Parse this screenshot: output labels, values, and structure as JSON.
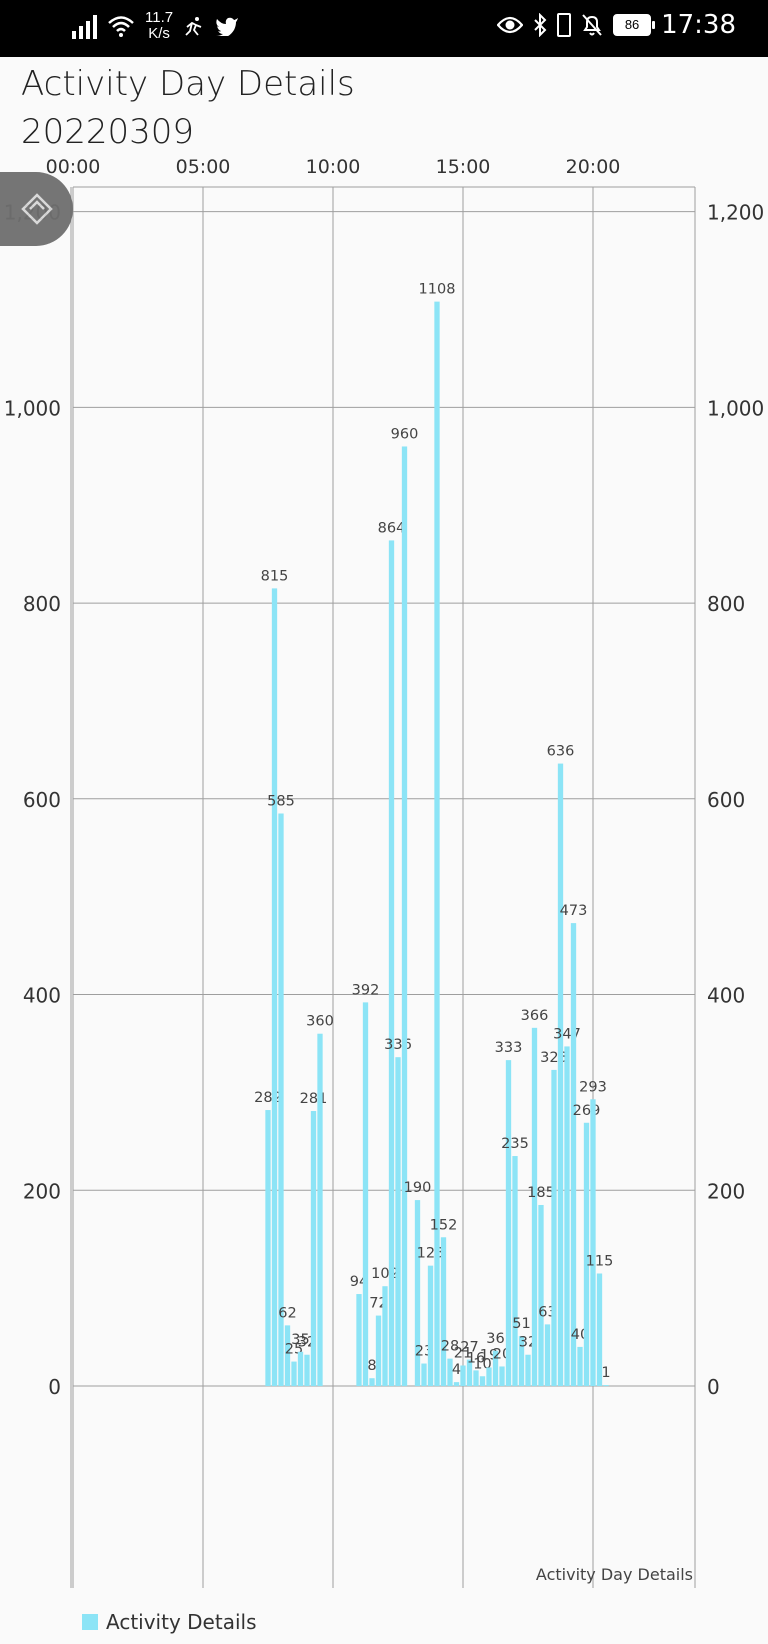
{
  "status_bar": {
    "net_speed_value": "11.7",
    "net_speed_unit": "K/s",
    "battery": "86",
    "time": "17:38",
    "icons": [
      "signal-icon",
      "wifi-icon",
      "activity-icon",
      "twitter-icon",
      "eye-icon",
      "bluetooth-icon",
      "battery-icon",
      "bell-off-icon"
    ]
  },
  "header": {
    "title_line1": "Activity Day Details",
    "title_line2": "20220309"
  },
  "fab": {
    "icon": "diamond-icon"
  },
  "colors": {
    "bar": "#8ce4f6",
    "grid": "#9e9e9e",
    "axis_text": "#333333"
  },
  "chart_data": {
    "type": "bar",
    "description_label": "Activity Day Details",
    "x_axis_labels": [
      "00:00",
      "05:00",
      "10:00",
      "15:00",
      "20:00"
    ],
    "x_label_hours": [
      0,
      5,
      10,
      15,
      20
    ],
    "xlim_hours": [
      0,
      24
    ],
    "y_ticks": [
      "0",
      "200",
      "400",
      "600",
      "800",
      "1,000",
      "1,200"
    ],
    "y_tick_values": [
      0,
      200,
      400,
      600,
      800,
      1000,
      1200
    ],
    "ylim": [
      -190,
      1220
    ],
    "grid": true,
    "legend_position": "bottom-left",
    "series": [
      {
        "name": "Activity Details",
        "x_hours": [
          7.5,
          7.75,
          8.0,
          8.25,
          8.5,
          8.75,
          9.0,
          9.25,
          9.5,
          11.0,
          11.25,
          11.5,
          11.75,
          12.0,
          12.25,
          12.5,
          12.75,
          13.0,
          13.25,
          13.5,
          13.75,
          14.0,
          14.25,
          14.5,
          14.75,
          15.0,
          15.25,
          15.5,
          15.75,
          16.0,
          16.25,
          16.5,
          16.75,
          17.0,
          17.25,
          17.5,
          17.75,
          18.0,
          18.25,
          18.5,
          18.75,
          19.0,
          19.25,
          19.5,
          19.75,
          20.0,
          20.25,
          20.5
        ],
        "values": [
          282,
          815,
          585,
          62,
          25,
          35,
          32,
          281,
          360,
          94,
          392,
          8,
          72,
          102,
          864,
          336,
          960,
          null,
          190,
          23,
          123,
          1108,
          152,
          28,
          4,
          21,
          27,
          16,
          10,
          19,
          36,
          20,
          333,
          235,
          51,
          32,
          366,
          185,
          63,
          323,
          636,
          347,
          473,
          40,
          269,
          293,
          115,
          1
        ],
        "labels": [
          "282",
          "815",
          "585",
          "62",
          "25",
          "35",
          "32",
          "281",
          "360",
          "94",
          "392",
          "8",
          "72",
          "102",
          "864",
          "336",
          "960",
          "",
          "190",
          "23",
          "123",
          "1108",
          "152",
          "28",
          "4",
          "21",
          "27",
          "16",
          "10",
          "19",
          "36",
          "20",
          "333",
          "235",
          "51",
          "32",
          "366",
          "185",
          "63",
          "323",
          "636",
          "347",
          "473",
          "40",
          "269",
          "293",
          "115",
          "1"
        ]
      }
    ]
  }
}
